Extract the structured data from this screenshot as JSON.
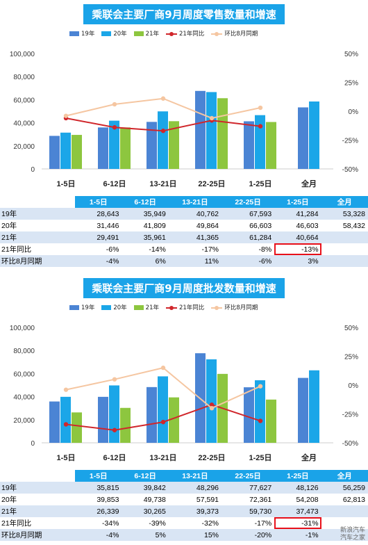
{
  "chart_data": [
    {
      "type": "bar",
      "title": "乘联会主要厂商9月周度零售数量和增速",
      "categories": [
        "1-5日",
        "6-12日",
        "13-21日",
        "22-25日",
        "1-25日",
        "全月"
      ],
      "series": [
        {
          "name": "19年",
          "kind": "bar",
          "color": "#4b84d4",
          "values": [
            28643,
            35949,
            40762,
            67593,
            41284,
            53328
          ]
        },
        {
          "name": "20年",
          "kind": "bar",
          "color": "#1ba6e8",
          "values": [
            31446,
            41809,
            49864,
            66603,
            46603,
            58432
          ]
        },
        {
          "name": "21年",
          "kind": "bar",
          "color": "#8dc63f",
          "values": [
            29491,
            35961,
            41365,
            61284,
            40664,
            null
          ]
        },
        {
          "name": "21年同比",
          "kind": "line",
          "axis": "right",
          "color": "#d0262b",
          "values": [
            -6,
            -14,
            -17,
            -8,
            -13,
            null
          ]
        },
        {
          "name": "环比8月同期",
          "kind": "line",
          "axis": "right",
          "color": "#f5c6a1",
          "values": [
            -4,
            6,
            11,
            -6,
            3,
            null
          ]
        }
      ],
      "ylim": [
        0,
        100000
      ],
      "yticks": [
        "0",
        "20,000",
        "40,000",
        "60,000",
        "80,000",
        "100,000"
      ],
      "y2lim": [
        -50,
        50
      ],
      "y2ticks": [
        "-50%",
        "-25%",
        "0%",
        "25%",
        "50%"
      ],
      "legend": "top",
      "grid": false,
      "table": {
        "header": [
          "",
          "1-5日",
          "6-12日",
          "13-21日",
          "22-25日",
          "1-25日",
          "全月"
        ],
        "rows": [
          [
            "19年",
            "28,643",
            "35,949",
            "40,762",
            "67,593",
            "41,284",
            "53,328"
          ],
          [
            "20年",
            "31,446",
            "41,809",
            "49,864",
            "66,603",
            "46,603",
            "58,432"
          ],
          [
            "21年",
            "29,491",
            "35,961",
            "41,365",
            "61,284",
            "40,664",
            ""
          ],
          [
            "21年同比",
            "-6%",
            "-14%",
            "-17%",
            "-8%",
            "-13%",
            ""
          ],
          [
            "环比8月同期",
            "-4%",
            "6%",
            "11%",
            "-6%",
            "3%",
            ""
          ]
        ],
        "highlight": [
          3,
          5
        ]
      }
    },
    {
      "type": "bar",
      "title": "乘联会主要厂商9月周度批发数量和增速",
      "categories": [
        "1-5日",
        "6-12日",
        "13-21日",
        "22-25日",
        "1-25日",
        "全月"
      ],
      "series": [
        {
          "name": "19年",
          "kind": "bar",
          "color": "#4b84d4",
          "values": [
            35815,
            39842,
            48296,
            77627,
            48126,
            56259
          ]
        },
        {
          "name": "20年",
          "kind": "bar",
          "color": "#1ba6e8",
          "values": [
            39853,
            49738,
            57591,
            72361,
            54208,
            62813
          ]
        },
        {
          "name": "21年",
          "kind": "bar",
          "color": "#8dc63f",
          "values": [
            26339,
            30265,
            39373,
            59730,
            37473,
            null
          ]
        },
        {
          "name": "21年同比",
          "kind": "line",
          "axis": "right",
          "color": "#d0262b",
          "values": [
            -34,
            -39,
            -32,
            -17,
            -31,
            null
          ]
        },
        {
          "name": "环比8月同期",
          "kind": "line",
          "axis": "right",
          "color": "#f5c6a1",
          "values": [
            -4,
            5,
            15,
            -20,
            -1,
            null
          ]
        }
      ],
      "ylim": [
        0,
        100000
      ],
      "yticks": [
        "0",
        "20,000",
        "40,000",
        "60,000",
        "80,000",
        "100,000"
      ],
      "y2lim": [
        -50,
        50
      ],
      "y2ticks": [
        "-50%",
        "-25%",
        "0%",
        "25%",
        "50%"
      ],
      "legend": "top",
      "grid": false,
      "table": {
        "header": [
          "",
          "1-5日",
          "6-12日",
          "13-21日",
          "22-25日",
          "1-25日",
          "全月"
        ],
        "rows": [
          [
            "19年",
            "35,815",
            "39,842",
            "48,296",
            "77,627",
            "48,126",
            "56,259"
          ],
          [
            "20年",
            "39,853",
            "49,738",
            "57,591",
            "72,361",
            "54,208",
            "62,813"
          ],
          [
            "21年",
            "26,339",
            "30,265",
            "39,373",
            "59,730",
            "37,473",
            ""
          ],
          [
            "21年同比",
            "-34%",
            "-39%",
            "-32%",
            "-17%",
            "-31%",
            ""
          ],
          [
            "环比8月同期",
            "-4%",
            "5%",
            "15%",
            "-20%",
            "-1%",
            ""
          ]
        ],
        "highlight": [
          3,
          5
        ]
      }
    }
  ],
  "watermark": [
    "新浪汽车",
    "汽车之家"
  ]
}
